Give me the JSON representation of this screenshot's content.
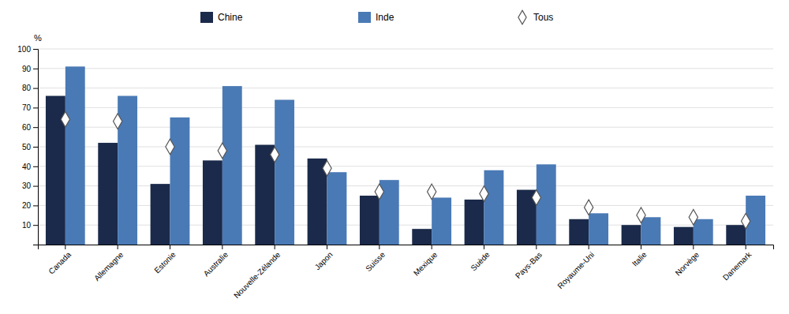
{
  "chart_data": {
    "type": "bar",
    "categories": [
      "Canada",
      "Allemagne",
      "Estonie",
      "Australie",
      "Nouvelle-Zélande",
      "Japon",
      "Suisse",
      "Mexique",
      "Suède",
      "Pays-Bas",
      "Royaume-Uni",
      "Italie",
      "Norvège",
      "Danemark"
    ],
    "series": [
      {
        "name": "Chine",
        "color": "#1b2a4a",
        "values": [
          76,
          52,
          31,
          43,
          51,
          44,
          25,
          8,
          23,
          28,
          13,
          10,
          9,
          10
        ]
      },
      {
        "name": "Inde",
        "color": "#4a7ab5",
        "values": [
          91,
          76,
          65,
          81,
          74,
          37,
          33,
          24,
          38,
          41,
          16,
          14,
          13,
          25
        ]
      },
      {
        "name": "Tous",
        "type": "scatter",
        "marker": "diamond",
        "color": "#ffffff",
        "values": [
          64,
          63,
          50,
          48,
          46,
          39,
          27,
          27,
          26,
          24,
          19,
          15,
          14,
          12
        ]
      }
    ],
    "ylabel": "%",
    "ylim": [
      0,
      100
    ],
    "yticks": [
      10,
      20,
      30,
      40,
      50,
      60,
      70,
      80,
      90,
      100
    ],
    "grid": true,
    "legend": "top"
  }
}
